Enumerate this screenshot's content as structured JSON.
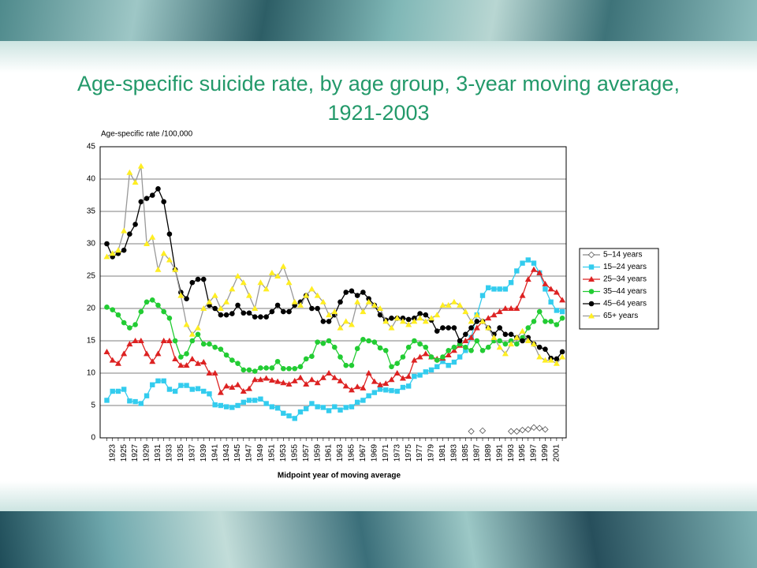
{
  "chart_data": {
    "type": "line",
    "title": "Age-specific suicide rate, by age group, 3-year moving average, 1921-2003",
    "y_label": "Age-specific rate /100,000",
    "x_label": "Midpoint year of moving average",
    "categories": [
      null,
      "1923",
      null,
      "1925",
      null,
      "1927",
      null,
      "1929",
      null,
      "1931",
      null,
      "1933",
      null,
      "1935",
      null,
      "1937",
      null,
      "1939",
      null,
      "1941",
      null,
      "1943",
      null,
      "1945",
      null,
      "1947",
      null,
      "1949",
      null,
      "1951",
      null,
      "1953",
      null,
      "1955",
      null,
      "1957",
      null,
      "1959",
      null,
      "1961",
      null,
      "1963",
      null,
      "1965",
      null,
      "1967",
      null,
      "1969",
      null,
      "1971",
      null,
      "1973",
      null,
      "1975",
      null,
      "1977",
      null,
      "1979",
      null,
      "1981",
      null,
      "1983",
      null,
      "1985",
      null,
      "1987",
      null,
      "1989",
      null,
      "1991",
      null,
      "1993",
      null,
      "1995",
      null,
      "1997",
      null,
      "1999",
      null,
      "2001",
      null
    ],
    "ylim": [
      0,
      45
    ],
    "yticks": [
      0,
      5,
      10,
      15,
      20,
      25,
      30,
      35,
      40,
      45
    ],
    "grid": true,
    "legend": "right",
    "series": [
      {
        "name": "5–14 years",
        "color": "#555555",
        "values": [
          null,
          null,
          null,
          null,
          null,
          null,
          null,
          null,
          null,
          null,
          null,
          null,
          null,
          null,
          null,
          null,
          null,
          null,
          null,
          null,
          null,
          null,
          null,
          null,
          null,
          null,
          null,
          null,
          null,
          null,
          null,
          null,
          null,
          null,
          null,
          null,
          null,
          null,
          null,
          null,
          null,
          null,
          null,
          null,
          null,
          null,
          null,
          null,
          null,
          null,
          null,
          null,
          null,
          null,
          null,
          null,
          null,
          null,
          null,
          null,
          null,
          null,
          null,
          null,
          1,
          null,
          1.1,
          null,
          null,
          null,
          null,
          1,
          1,
          1.2,
          1.3,
          1.6,
          1.5,
          1.3,
          null,
          null,
          null
        ]
      },
      {
        "name": "15–24 years",
        "color": "#33ccee",
        "values": [
          5.8,
          7.2,
          7.2,
          7.5,
          5.7,
          5.6,
          5.3,
          6.5,
          8.2,
          8.8,
          8.8,
          7.5,
          7.2,
          8.1,
          8.1,
          7.5,
          7.6,
          7.2,
          6.8,
          5.1,
          5,
          4.8,
          4.7,
          5,
          5.5,
          5.8,
          5.8,
          6,
          5.3,
          4.8,
          4.6,
          3.8,
          3.4,
          3,
          4,
          4.5,
          5.3,
          4.8,
          4.7,
          4.2,
          4.8,
          4.3,
          4.7,
          4.8,
          5.5,
          5.8,
          6.5,
          7,
          7.5,
          7.4,
          7.3,
          7.2,
          7.8,
          8,
          9.5,
          9.7,
          10.2,
          10.5,
          11,
          11.8,
          11.2,
          11.7,
          12.5,
          13.5,
          15.5,
          19,
          22,
          23.2,
          23,
          23,
          23,
          24,
          25.8,
          27,
          27.5,
          27,
          25.5,
          23,
          21,
          19.7,
          19.5
        ]
      },
      {
        "name": "25–34 years",
        "color": "#dd2222",
        "values": [
          13.3,
          12,
          11.5,
          13,
          14.5,
          15,
          15,
          13,
          11.8,
          13,
          15,
          15,
          12.2,
          11.2,
          11.2,
          12.2,
          11.5,
          11.7,
          10,
          10,
          7,
          8,
          7.8,
          8.2,
          7.2,
          7.6,
          9,
          9,
          9.2,
          8.9,
          8.7,
          8.5,
          8.3,
          8.8,
          9.3,
          8.3,
          9,
          8.5,
          9.3,
          10,
          9.3,
          8.8,
          8,
          7.4,
          7.9,
          7.7,
          10,
          8.7,
          8.2,
          8.4,
          9,
          10,
          9.2,
          9.5,
          12,
          12.5,
          13,
          12.5,
          12.2,
          12.3,
          12.8,
          13.5,
          14.3,
          15,
          15.5,
          17,
          18,
          18.5,
          19,
          19.5,
          20,
          20,
          20,
          22,
          24.5,
          26,
          25.5,
          23.8,
          23,
          22.5,
          21.3
        ]
      },
      {
        "name": "35–44 years",
        "color": "#22cc33",
        "values": [
          20.2,
          19.8,
          19,
          17.8,
          17,
          17.5,
          19.5,
          21,
          21.3,
          20.5,
          19.5,
          18.5,
          15,
          12.5,
          13,
          15,
          16,
          14.5,
          14.5,
          14,
          13.7,
          12.8,
          12,
          11.5,
          10.5,
          10.5,
          10.3,
          10.8,
          10.8,
          10.8,
          11.8,
          10.7,
          10.7,
          10.7,
          11,
          12.2,
          12.6,
          14.8,
          14.6,
          15,
          14,
          12.5,
          11.2,
          11.2,
          13.8,
          15.2,
          15,
          14.8,
          13.9,
          13.5,
          11,
          11.5,
          12.5,
          14,
          15,
          14.5,
          14,
          12.5,
          12,
          12.5,
          13.5,
          14,
          14.5,
          14,
          13.5,
          15,
          13.5,
          14,
          15,
          15,
          14.5,
          15,
          14.5,
          15.5,
          17,
          18,
          19.5,
          18,
          18,
          17.5,
          18.5
        ]
      },
      {
        "name": "45–64 years",
        "color": "#000000",
        "values": [
          30,
          28,
          28.5,
          29,
          31.5,
          33,
          36.5,
          37,
          37.5,
          38.5,
          36.5,
          31.5,
          26,
          22.5,
          21.5,
          24,
          24.5,
          24.5,
          20.5,
          20,
          19,
          19,
          19.2,
          20.5,
          19.3,
          19.3,
          18.7,
          18.7,
          18.7,
          19.5,
          20.5,
          19.5,
          19.5,
          20.5,
          21,
          22,
          20,
          20,
          18,
          18,
          19,
          21,
          22.5,
          22.7,
          22,
          22.5,
          21.5,
          20.5,
          19,
          18.2,
          18.5,
          18.5,
          18.5,
          18.3,
          18.5,
          19.2,
          19,
          18.2,
          16.5,
          17,
          17,
          17,
          15,
          16,
          17,
          18,
          18,
          17,
          16,
          17,
          16,
          16,
          15.5,
          15,
          15.5,
          14.5,
          14,
          13.7,
          12.3,
          12.2,
          13.3
        ]
      },
      {
        "name": "65+ years",
        "color": "#ffee22",
        "values": [
          28,
          28.5,
          29,
          32,
          41,
          39.5,
          42,
          30,
          31,
          26,
          28.5,
          27.5,
          26,
          22,
          17.5,
          16,
          17,
          20,
          21,
          22,
          20,
          21,
          23,
          25,
          24,
          22,
          20,
          24,
          23,
          25.5,
          25,
          26.5,
          24,
          21,
          20.5,
          22,
          23,
          22,
          21,
          19,
          19.5,
          17,
          18,
          17.5,
          21,
          19.5,
          21,
          20.5,
          20,
          18,
          17,
          18.5,
          18,
          17.5,
          18,
          18.5,
          18,
          18.5,
          19,
          20.5,
          20.5,
          21,
          20.5,
          19.5,
          18,
          19,
          18,
          17,
          15.5,
          14,
          13,
          14.5,
          15.5,
          16.5,
          15,
          14.5,
          12.5,
          12,
          12,
          11.5,
          12.5
        ]
      }
    ]
  }
}
